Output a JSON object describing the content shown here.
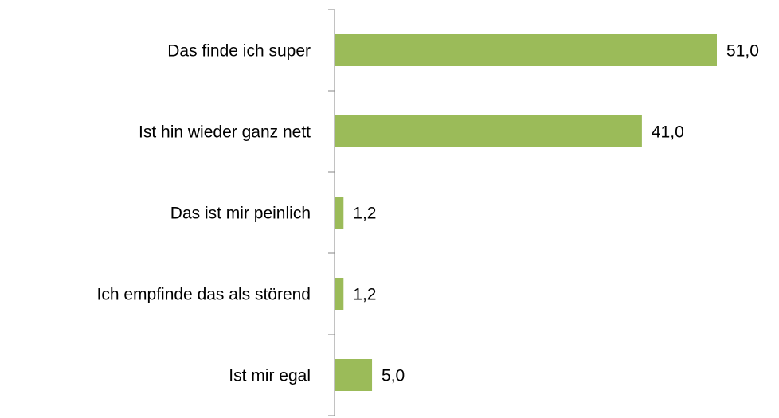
{
  "chart_data": {
    "type": "bar",
    "orientation": "horizontal",
    "categories": [
      "Das finde ich super",
      "Ist hin wieder ganz nett",
      "Das ist mir peinlich",
      "Ich empfinde das als störend",
      "Ist mir egal"
    ],
    "values": [
      51.0,
      41.0,
      1.2,
      1.2,
      5.0
    ],
    "value_labels": [
      "51,0",
      "41,0",
      "1,2",
      "1,2",
      "5,0"
    ],
    "color": "#9bbb59"
  }
}
